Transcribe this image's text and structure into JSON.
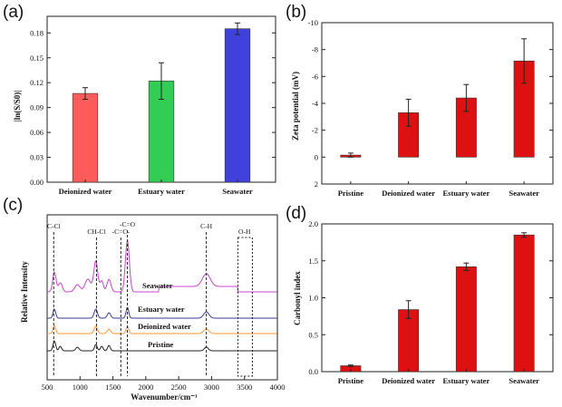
{
  "chart_data": [
    {
      "panel": "(a)",
      "type": "bar",
      "title": "",
      "xlabel": "",
      "ylabel": "|ln(S/S0)|",
      "categories": [
        "Deionized water",
        "Estuary water",
        "Seawater"
      ],
      "values": [
        0.107,
        0.122,
        0.185
      ],
      "errors": [
        0.007,
        0.022,
        0.007
      ],
      "colors": [
        "#ff5b5b",
        "#33cc55",
        "#4040dd"
      ],
      "ylim": [
        0,
        0.2
      ],
      "yticks": [
        "0.00",
        "0.03",
        "0.06",
        "0.09",
        "0.12",
        "0.15",
        "0.18"
      ],
      "ytick_values": [
        0,
        0.03,
        0.06,
        0.09,
        0.12,
        0.15,
        0.18
      ]
    },
    {
      "panel": "(b)",
      "type": "bar",
      "title": "",
      "xlabel": "",
      "ylabel": "Zeta potential (mV)",
      "categories": [
        "Pristine",
        "Deionized water",
        "Estuary water",
        "Seawater"
      ],
      "values": [
        -0.15,
        -3.3,
        -4.4,
        -7.15
      ],
      "errors": [
        0.15,
        1.0,
        1.0,
        1.65
      ],
      "colors": [
        "#dd1111",
        "#dd1111",
        "#dd1111",
        "#dd1111"
      ],
      "ylim": [
        2,
        -10
      ],
      "yticks": [
        "2",
        "0",
        "-2",
        "-4",
        "-6",
        "-8",
        "-10"
      ],
      "ytick_values": [
        2,
        0,
        -2,
        -4,
        -6,
        -8,
        -10
      ]
    },
    {
      "panel": "(c)",
      "type": "line",
      "title": "",
      "xlabel": "Wavenumber/cm⁻¹",
      "ylabel": "Relative Intensity",
      "xlim": [
        500,
        4000
      ],
      "xticks": [
        "500",
        "1000",
        "1500",
        "2000",
        "2500",
        "3000",
        "3500",
        "4000"
      ],
      "xtick_values": [
        500,
        1000,
        1500,
        2000,
        2500,
        3000,
        3500,
        4000
      ],
      "series": [
        {
          "name": "Seawater",
          "color": "#cc44cc"
        },
        {
          "name": "Estuary water",
          "color": "#3a3a99"
        },
        {
          "name": "Deionized water",
          "color": "#ff9933"
        },
        {
          "name": "Pristine",
          "color": "#222222"
        }
      ],
      "annotations": [
        {
          "text": "C-Cl",
          "x": 600
        },
        {
          "text": "CH-Cl",
          "x": 1250
        },
        {
          "text": "-C=C-",
          "x": 1620
        },
        {
          "text": "-C=O",
          "x": 1720
        },
        {
          "text": "C-H",
          "x": 2920
        },
        {
          "text": "O-H",
          "x": 3500
        }
      ]
    },
    {
      "panel": "(d)",
      "type": "bar",
      "title": "",
      "xlabel": "",
      "ylabel": "Carbonyl index",
      "categories": [
        "Pristine",
        "Deionized water",
        "Estuary water",
        "Seawater"
      ],
      "values": [
        0.08,
        0.84,
        1.42,
        1.85
      ],
      "errors": [
        0.01,
        0.12,
        0.05,
        0.03
      ],
      "colors": [
        "#dd1111",
        "#dd1111",
        "#dd1111",
        "#dd1111"
      ],
      "ylim": [
        0,
        2.0
      ],
      "yticks": [
        "0.0",
        "0.5",
        "1.0",
        "1.5",
        "2.0"
      ],
      "ytick_values": [
        0,
        0.5,
        1.0,
        1.5,
        2.0
      ]
    }
  ]
}
